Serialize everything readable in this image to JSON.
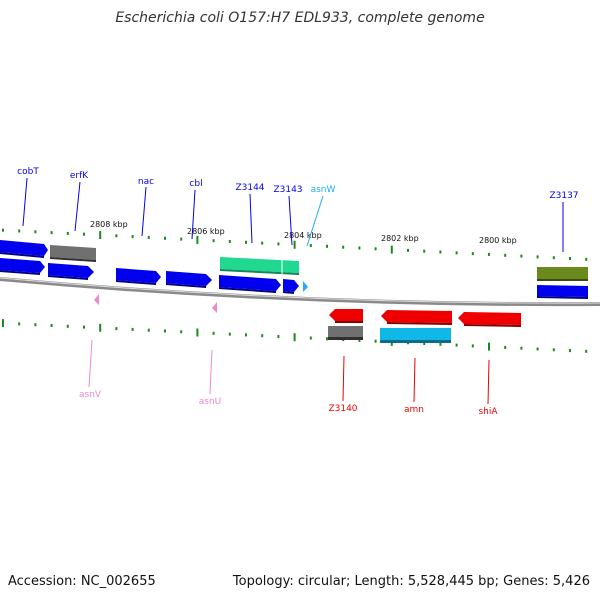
{
  "title": "Escherichia coli O157:H7 EDL933, complete genome",
  "footer": {
    "accession": "Accession: NC_002655",
    "summary": "Topology: circular; Length: 5,528,445 bp; Genes: 5,426"
  },
  "colors": {
    "backbone": "#8a8a8a",
    "tick": "#1a8a1a",
    "gene_blue": "#0000ee",
    "gene_red": "#ee0000",
    "gene_grey": "#707070",
    "gene_teal": "#20d890",
    "gene_cyan": "#10b8e8",
    "gene_olive": "#6b8a1e",
    "trna_pink": "#ee88cc",
    "trna_cyan": "#22aaff"
  },
  "scale_labels": [
    "2808 kbp",
    "2806 kbp",
    "2804 kbp",
    "2802 kbp",
    "2800 kbp"
  ],
  "gene_labels": [
    {
      "id": "cobT",
      "text": "cobT",
      "color": "blue"
    },
    {
      "id": "erfK",
      "text": "erfK",
      "color": "blue"
    },
    {
      "id": "nac",
      "text": "nac",
      "color": "blue"
    },
    {
      "id": "cbl",
      "text": "cbl",
      "color": "blue"
    },
    {
      "id": "z3144",
      "text": "Z3144",
      "color": "blue"
    },
    {
      "id": "z3143",
      "text": "Z3143",
      "color": "blue"
    },
    {
      "id": "asnW",
      "text": "asnW",
      "color": "cyan"
    },
    {
      "id": "z3137",
      "text": "Z3137",
      "color": "blue"
    },
    {
      "id": "asnV",
      "text": "asnV",
      "color": "pink"
    },
    {
      "id": "asnU",
      "text": "asnU",
      "color": "pink"
    },
    {
      "id": "z3140",
      "text": "Z3140",
      "color": "red"
    },
    {
      "id": "amn",
      "text": "amn",
      "color": "red"
    },
    {
      "id": "shiA",
      "text": "shiA",
      "color": "red"
    }
  ]
}
